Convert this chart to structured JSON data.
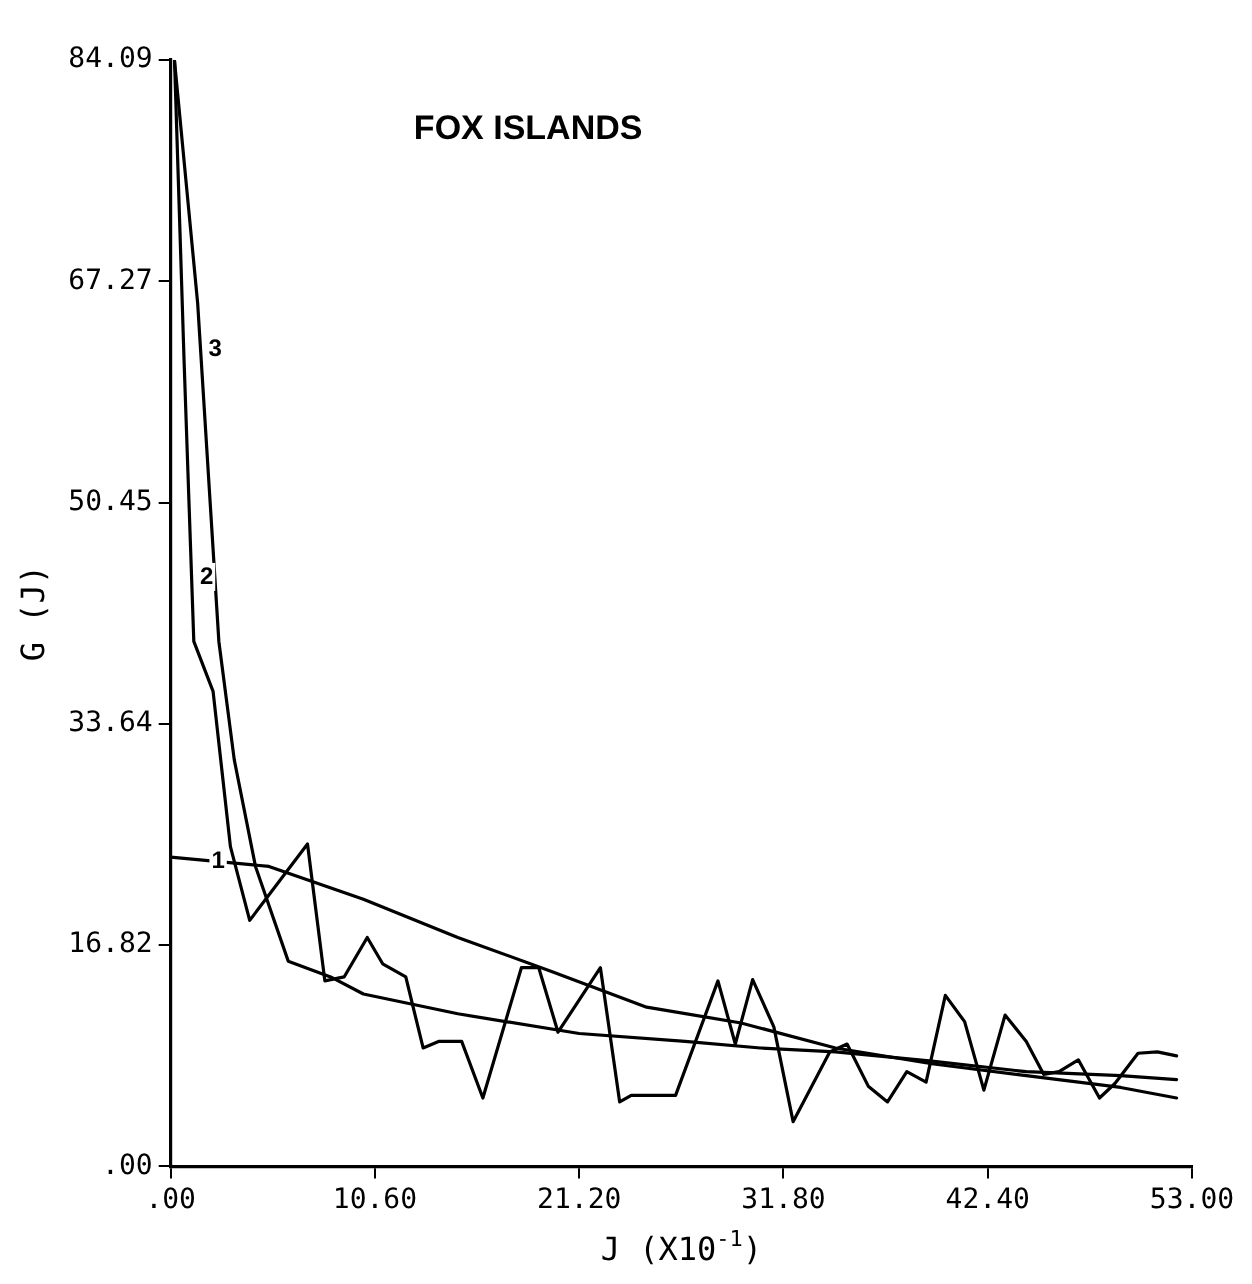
{
  "chart_data": {
    "type": "line",
    "title": "FOX ISLANDS",
    "xlabel": "J (X10$^{-1}$)",
    "ylabel": "G (J)",
    "xlim": [
      0,
      53
    ],
    "xticks": [
      {
        "value": 0,
        "label": ".00"
      },
      {
        "value": 10.6,
        "label": "10.60"
      },
      {
        "value": 21.2,
        "label": "21.20"
      },
      {
        "value": 31.8,
        "label": "31.80"
      },
      {
        "value": 42.4,
        "label": "42.40"
      },
      {
        "value": 53,
        "label": "53.00"
      }
    ],
    "ylim": [
      0,
      84.09
    ],
    "yticks": [
      {
        "value": 0,
        "label": ".00"
      },
      {
        "value": 16.82,
        "label": "16.82"
      },
      {
        "value": 33.64,
        "label": "33.64"
      },
      {
        "value": 50.45,
        "label": "50.45"
      },
      {
        "value": 67.27,
        "label": "67.27"
      },
      {
        "value": 84.09,
        "label": "84.09"
      }
    ],
    "grid": false,
    "legend": false,
    "marker": "none",
    "line_style": "solid",
    "series": [
      {
        "color": "#000000",
        "x": [
          0,
          5.1,
          10,
          14.9,
          19.8,
          24.7,
          29.6,
          34.5,
          39.5,
          44.4,
          49.3,
          52.2
        ],
        "values": [
          23.5,
          22.8,
          20.3,
          17.4,
          14.8,
          12.1,
          10.9,
          9,
          7.8,
          6.9,
          6,
          5.2
        ]
      },
      {
        "color": "#000000",
        "x": [
          0.2,
          0.7,
          1.2,
          2.2,
          3.1,
          4.1,
          7.1,
          8,
          9,
          10.2,
          11,
          12.2,
          13.1,
          13.9,
          15.1,
          16.2,
          18.2,
          19.1,
          20.1,
          22.3,
          23.3,
          23.9,
          26.2,
          28.4,
          29.3,
          30.2,
          31.3,
          32.3,
          34.2,
          35.1,
          36.2,
          37.2,
          38.2,
          39.2,
          40.2,
          41.2,
          42.2,
          43.3,
          44.4,
          45.3,
          46.1,
          47.1,
          48.2,
          49,
          50.2,
          51.2,
          52.2
        ],
        "values": [
          84,
          61,
          39.9,
          36.1,
          24.3,
          18.7,
          24.5,
          14.1,
          14.4,
          17.4,
          15.4,
          14.4,
          9,
          9.5,
          9.5,
          5.2,
          15.1,
          15.1,
          10.2,
          15.1,
          4.9,
          5.4,
          5.4,
          14.1,
          9.3,
          14.2,
          10.6,
          3.4,
          8.7,
          9.3,
          6.1,
          4.9,
          7.2,
          6.4,
          13,
          11,
          5.8,
          11.5,
          9.5,
          7,
          7.2,
          8.1,
          5.2,
          6.3,
          8.6,
          8.7,
          8.4
        ]
      },
      {
        "color": "#000000",
        "x": [
          0.2,
          1.4,
          2.5,
          3.3,
          4.4,
          6.1,
          8.3,
          10,
          14.9,
          21.2,
          26.7,
          30.6,
          34.5,
          39.5,
          44.4,
          49.3,
          52.2
        ],
        "values": [
          84,
          65.6,
          39.9,
          30.9,
          22.8,
          15.6,
          14.4,
          13.1,
          11.6,
          10.1,
          9.5,
          9,
          8.7,
          8,
          7.2,
          6.9,
          6.6
        ]
      }
    ],
    "annotations": [
      {
        "text": "1",
        "x": 1.7,
        "y": 23.2
      },
      {
        "text": "2",
        "x": 1.1,
        "y": 44.8
      },
      {
        "text": "3",
        "x": 1.55,
        "y": 62.1
      }
    ]
  }
}
